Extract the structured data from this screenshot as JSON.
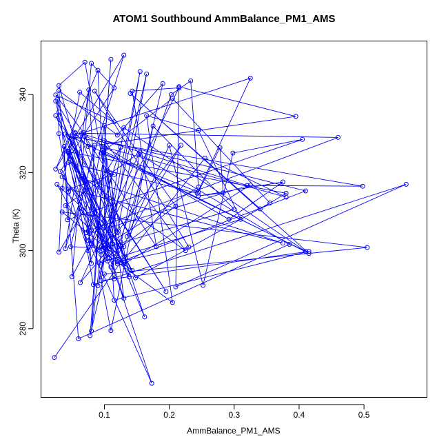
{
  "chart_data": {
    "type": "line",
    "title": "ATOM1 Southbound AmmBalance_PM1_AMS",
    "xlabel": "AmmBalance_PM1_AMS",
    "ylabel": "Theta (K)",
    "xlim": [
      0.0029,
      0.5965
    ],
    "ylim": [
      262.48,
      353.63
    ],
    "x_ticks": [
      0.1,
      0.2,
      0.3,
      0.4,
      0.5
    ],
    "x_tick_labels": [
      "0.1",
      "0.2",
      "0.3",
      "0.4",
      "0.5"
    ],
    "y_ticks": [
      280,
      300,
      320,
      340
    ],
    "y_tick_labels": [
      "280",
      "300",
      "320",
      "340"
    ],
    "grid": false,
    "legend": "none",
    "marker": "open-circle",
    "color": "#0000ff",
    "series": [
      {
        "points": [
          [
            0.023,
            272.6
          ],
          [
            0.125,
            297.0
          ],
          [
            0.07,
            348.3
          ],
          [
            0.03,
            342.3
          ],
          [
            0.105,
            298.0
          ],
          [
            0.09,
            346.2
          ],
          [
            0.025,
            320.9
          ],
          [
            0.13,
            350.1
          ],
          [
            0.04,
            300.5
          ],
          [
            0.076,
            341.2
          ],
          [
            0.09,
            305.8
          ],
          [
            0.05,
            293.3
          ],
          [
            0.08,
            348.0
          ],
          [
            0.115,
            341.7
          ],
          [
            0.032,
            320.3
          ],
          [
            0.108,
            300.5
          ],
          [
            0.155,
            345.9
          ],
          [
            0.09,
            291.0
          ],
          [
            0.165,
            345.3
          ],
          [
            0.12,
            304.6
          ],
          [
            0.07,
            329.3
          ],
          [
            0.18,
            301.0
          ],
          [
            0.143,
            340.9
          ],
          [
            0.215,
            341.7
          ],
          [
            0.09,
            300.1
          ],
          [
            0.245,
            316.3
          ],
          [
            0.233,
            343.5
          ],
          [
            0.203,
            340.0
          ],
          [
            0.11,
            295.8
          ],
          [
            0.218,
            327.0
          ],
          [
            0.095,
            299.0
          ],
          [
            0.08,
            301.5
          ],
          [
            0.125,
            326.5
          ],
          [
            0.03,
            299.6
          ],
          [
            0.035,
            316.0
          ],
          [
            0.062,
            340.6
          ],
          [
            0.115,
            333.0
          ],
          [
            0.025,
            339.9
          ],
          [
            0.068,
            330.2
          ],
          [
            0.325,
            344.2
          ],
          [
            0.243,
            314.7
          ],
          [
            0.105,
            320.5
          ],
          [
            0.13,
            287.8
          ],
          [
            0.05,
            329.4
          ],
          [
            0.105,
            297.3
          ],
          [
            0.065,
            319.0
          ],
          [
            0.225,
            300.0
          ],
          [
            0.1,
            328.2
          ],
          [
            0.41,
            315.3
          ],
          [
            0.13,
            297.5
          ],
          [
            0.04,
            311.5
          ],
          [
            0.155,
            325.2
          ],
          [
            0.125,
            301.3
          ],
          [
            0.162,
            283.0
          ],
          [
            0.03,
            335.5
          ],
          [
            0.113,
            301.7
          ],
          [
            0.063,
            291.8
          ],
          [
            0.153,
            324.7
          ],
          [
            0.385,
            301.6
          ],
          [
            0.06,
            277.4
          ],
          [
            0.03,
            341.0
          ],
          [
            0.12,
            329.6
          ],
          [
            0.19,
            342.8
          ],
          [
            0.135,
            303.6
          ],
          [
            0.2,
            327.0
          ],
          [
            0.252,
            291.1
          ],
          [
            0.298,
            325.0
          ],
          [
            0.405,
            328.5
          ],
          [
            0.043,
            307.9
          ],
          [
            0.038,
            326.7
          ],
          [
            0.12,
            296.6
          ],
          [
            0.025,
            334.6
          ],
          [
            0.195,
            289.5
          ],
          [
            0.04,
            329.9
          ],
          [
            0.41,
            299.8
          ],
          [
            0.13,
            331.5
          ],
          [
            0.095,
            292.3
          ],
          [
            0.415,
            299.8
          ],
          [
            0.115,
            287.3
          ],
          [
            0.1,
            332.0
          ],
          [
            0.072,
            304.6
          ],
          [
            0.085,
            309.6
          ],
          [
            0.173,
            266.0
          ],
          [
            0.075,
            302.5
          ],
          [
            0.205,
            286.7
          ],
          [
            0.165,
            334.6
          ],
          [
            0.245,
            330.8
          ],
          [
            0.31,
            308.0
          ],
          [
            0.092,
            296.8
          ],
          [
            0.21,
            311.4
          ],
          [
            0.085,
            340.9
          ],
          [
            0.23,
            300.9
          ],
          [
            0.12,
            297.1
          ],
          [
            0.11,
            319.9
          ],
          [
            0.08,
            279.4
          ],
          [
            0.11,
            349.0
          ],
          [
            0.078,
            278.2
          ],
          [
            0.1,
            294.0
          ],
          [
            0.505,
            300.8
          ],
          [
            0.035,
            309.9
          ],
          [
            0.13,
            297.0
          ],
          [
            0.062,
            310.8
          ],
          [
            0.083,
            291.3
          ],
          [
            0.565,
            317.0
          ],
          [
            0.21,
            290.7
          ],
          [
            0.215,
            342.0
          ],
          [
            0.395,
            334.4
          ],
          [
            0.075,
            326.7
          ],
          [
            0.055,
            330.1
          ],
          [
            0.46,
            329.0
          ],
          [
            0.08,
            305.3
          ],
          [
            0.11,
            279.5
          ],
          [
            0.175,
            331.9
          ],
          [
            0.3,
            310.6
          ],
          [
            0.1,
            300.7
          ],
          [
            0.048,
            301.0
          ],
          [
            0.085,
            327.0
          ],
          [
            0.078,
            306.0
          ],
          [
            0.028,
            338.8
          ],
          [
            0.03,
            330.0
          ],
          [
            0.045,
            315.1
          ],
          [
            0.075,
            300.0
          ],
          [
            0.1,
            307.5
          ],
          [
            0.102,
            326.2
          ],
          [
            0.075,
            302.5
          ],
          [
            0.027,
            317.0
          ],
          [
            0.13,
            301.0
          ],
          [
            0.035,
            318.9
          ],
          [
            0.055,
            329.1
          ],
          [
            0.112,
            306.7
          ],
          [
            0.115,
            292.7
          ],
          [
            0.05,
            323.1
          ],
          [
            0.133,
            298.2
          ],
          [
            0.255,
            323.7
          ],
          [
            0.38,
            313.7
          ],
          [
            0.1,
            326.5
          ],
          [
            0.138,
            293.3
          ],
          [
            0.043,
            325.5
          ],
          [
            0.143,
            294.9
          ],
          [
            0.095,
            301.0
          ],
          [
            0.118,
            305.0
          ],
          [
            0.063,
            329.4
          ],
          [
            0.08,
            296.7
          ],
          [
            0.025,
            338.3
          ],
          [
            0.055,
            330.2
          ],
          [
            0.045,
            325.0
          ],
          [
            0.077,
            304.4
          ],
          [
            0.325,
            316.8
          ],
          [
            0.13,
            296.5
          ],
          [
            0.097,
            325.7
          ],
          [
            0.415,
            299.3
          ],
          [
            0.14,
            340.3
          ],
          [
            0.34,
            310.7
          ],
          [
            0.38,
            314.7
          ],
          [
            0.045,
            325.3
          ],
          [
            0.148,
            293.0
          ],
          [
            0.355,
            312.2
          ],
          [
            0.205,
            339.0
          ],
          [
            0.095,
            325.0
          ],
          [
            0.245,
            315.0
          ],
          [
            0.278,
            326.4
          ],
          [
            0.283,
            314.8
          ],
          [
            0.245,
            314.0
          ],
          [
            0.375,
            317.6
          ],
          [
            0.292,
            308.0
          ],
          [
            0.065,
            330.0
          ],
          [
            0.32,
            316.7
          ],
          [
            0.498,
            316.5
          ],
          [
            0.045,
            329.3
          ],
          [
            0.065,
            318.6
          ],
          [
            0.375,
            301.9
          ],
          [
            0.045,
            315.8
          ],
          [
            0.115,
            319.5
          ],
          [
            0.045,
            322.6
          ],
          [
            0.08,
            301.8
          ]
        ]
      }
    ]
  }
}
